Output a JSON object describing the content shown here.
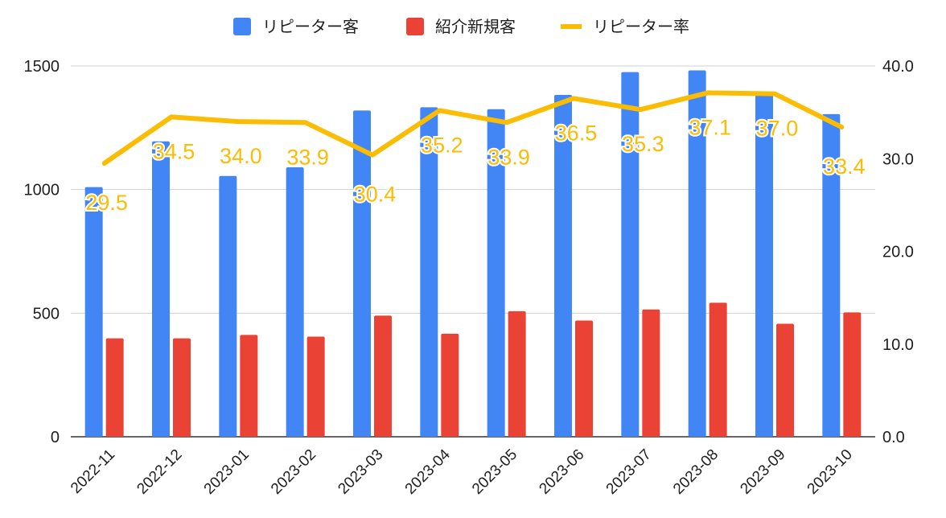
{
  "chart_data": {
    "type": "bar",
    "categories": [
      "2022-11",
      "2022-12",
      "2023-01",
      "2023-02",
      "2023-03",
      "2023-04",
      "2023-05",
      "2023-06",
      "2023-07",
      "2023-08",
      "2023-09",
      "2023-10"
    ],
    "series": [
      {
        "name": "リピーター客",
        "type": "bar",
        "axis": "left",
        "color": "#4285f4",
        "values": [
          1010,
          1195,
          1055,
          1090,
          1320,
          1333,
          1325,
          1383,
          1475,
          1482,
          1390,
          1305
        ]
      },
      {
        "name": "紹介新規客",
        "type": "bar",
        "axis": "left",
        "color": "#ea4335",
        "values": [
          398,
          398,
          412,
          405,
          490,
          417,
          508,
          470,
          515,
          542,
          457,
          503
        ]
      },
      {
        "name": "リピーター率",
        "type": "line",
        "axis": "right",
        "color": "#fbbc04",
        "values": [
          29.5,
          34.5,
          34.0,
          33.9,
          30.4,
          35.2,
          33.9,
          36.5,
          35.3,
          37.1,
          37.0,
          33.4
        ],
        "labels": [
          "29.5",
          "34.5",
          "34.0",
          "33.9",
          "30.4",
          "35.2",
          "33.9",
          "36.5",
          "35.3",
          "37.1",
          "37.0",
          "33.4"
        ]
      }
    ],
    "y_left": {
      "min": 0,
      "max": 1500,
      "ticks": [
        0,
        500,
        1000,
        1500
      ],
      "tick_labels": [
        "0",
        "500",
        "1000",
        "1500"
      ]
    },
    "y_right": {
      "min": 0,
      "max": 40,
      "ticks": [
        0,
        10,
        20,
        30,
        40
      ],
      "tick_labels": [
        "0.0",
        "10.0",
        "20.0",
        "30.0",
        "40.0"
      ]
    },
    "legend": {
      "position": "top-center",
      "items": [
        "リピーター客",
        "紹介新規客",
        "リピーター率"
      ]
    },
    "grid": true,
    "title": "",
    "xlabel": "",
    "ylabel": ""
  }
}
